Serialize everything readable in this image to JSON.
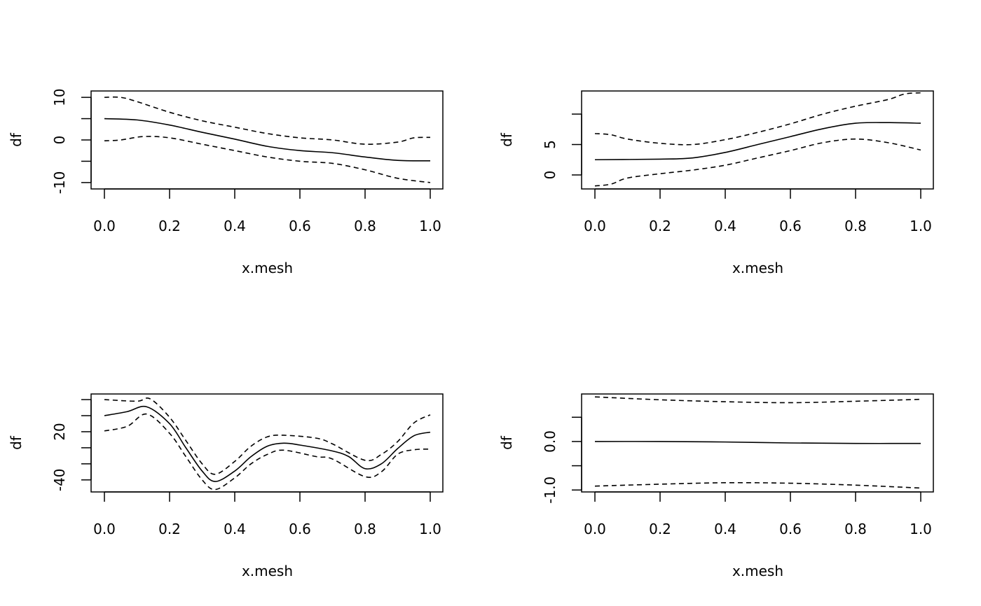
{
  "chart_data": [
    {
      "type": "line",
      "xlabel": "x.mesh",
      "ylabel": "df",
      "xlim": [
        0,
        1
      ],
      "ylim": [
        -11.5,
        11.5
      ],
      "xticks": [
        0,
        0.2,
        0.4,
        0.6,
        0.8,
        1.0
      ],
      "xtick_labels": [
        "0.0",
        "0.2",
        "0.4",
        "0.6",
        "0.8",
        "1.0"
      ],
      "yticks": [
        -10,
        -5,
        0,
        5,
        10
      ],
      "ytick_labels": [
        "-10",
        "",
        "0",
        "",
        "10"
      ],
      "series": [
        {
          "style": "solid",
          "x": [
            0,
            0.1,
            0.2,
            0.3,
            0.4,
            0.5,
            0.6,
            0.7,
            0.8,
            0.9,
            1.0
          ],
          "y": [
            5,
            4.7,
            3.5,
            1.8,
            0.2,
            -1.5,
            -2.5,
            -3,
            -4,
            -4.8,
            -4.9
          ]
        },
        {
          "style": "dashed",
          "x": [
            0,
            0.05,
            0.1,
            0.2,
            0.3,
            0.4,
            0.5,
            0.6,
            0.7,
            0.8,
            0.9,
            0.95,
            1.0
          ],
          "y": [
            10,
            10,
            9,
            6.5,
            4.5,
            3,
            1.5,
            0.5,
            0,
            -1,
            -0.5,
            0.5,
            0.6
          ]
        },
        {
          "style": "dashed",
          "x": [
            0,
            0.05,
            0.12,
            0.2,
            0.3,
            0.4,
            0.5,
            0.6,
            0.7,
            0.8,
            0.9,
            1.0
          ],
          "y": [
            -0.2,
            0,
            0.8,
            0.5,
            -1,
            -2.5,
            -4,
            -5,
            -5.5,
            -7,
            -9,
            -10
          ]
        }
      ]
    },
    {
      "type": "line",
      "xlabel": "x.mesh",
      "ylabel": "df",
      "xlim": [
        0,
        1
      ],
      "ylim": [
        -2.3,
        13.8
      ],
      "xticks": [
        0,
        0.2,
        0.4,
        0.6,
        0.8,
        1.0
      ],
      "xtick_labels": [
        "0.0",
        "0.2",
        "0.4",
        "0.6",
        "0.8",
        "1.0"
      ],
      "yticks": [
        0,
        5,
        10
      ],
      "ytick_labels": [
        "0",
        "5",
        ""
      ],
      "series": [
        {
          "style": "solid",
          "x": [
            0,
            0.2,
            0.3,
            0.4,
            0.5,
            0.6,
            0.7,
            0.8,
            0.9,
            1.0
          ],
          "y": [
            2.5,
            2.6,
            2.8,
            3.7,
            5,
            6.3,
            7.6,
            8.5,
            8.6,
            8.5
          ]
        },
        {
          "style": "dashed",
          "x": [
            0,
            0.05,
            0.1,
            0.2,
            0.3,
            0.4,
            0.5,
            0.6,
            0.7,
            0.8,
            0.9,
            0.95,
            1.0
          ],
          "y": [
            6.8,
            6.6,
            5.9,
            5.2,
            5,
            5.8,
            7,
            8.4,
            10,
            11.3,
            12.4,
            13.3,
            13.5
          ]
        },
        {
          "style": "dashed",
          "x": [
            0,
            0.05,
            0.1,
            0.2,
            0.3,
            0.4,
            0.5,
            0.6,
            0.7,
            0.8,
            0.9,
            1.0
          ],
          "y": [
            -1.8,
            -1.5,
            -0.5,
            0.2,
            0.8,
            1.6,
            2.8,
            4,
            5.3,
            5.9,
            5.3,
            4.1
          ]
        }
      ]
    },
    {
      "type": "line",
      "xlabel": "x.mesh",
      "ylabel": "df",
      "xlim": [
        0,
        1
      ],
      "ylim": [
        -55,
        67
      ],
      "xticks": [
        0,
        0.2,
        0.4,
        0.6,
        0.8,
        1.0
      ],
      "xtick_labels": [
        "0.0",
        "0.2",
        "0.4",
        "0.6",
        "0.8",
        "1.0"
      ],
      "yticks": [
        -40,
        -20,
        0,
        20,
        40,
        60
      ],
      "ytick_labels": [
        "-40",
        "",
        "",
        "20",
        "",
        ""
      ],
      "series": [
        {
          "style": "solid",
          "x": [
            0,
            0.07,
            0.13,
            0.2,
            0.25,
            0.3,
            0.34,
            0.4,
            0.45,
            0.5,
            0.55,
            0.6,
            0.7,
            0.75,
            0.8,
            0.85,
            0.9,
            0.95,
            1.0
          ],
          "y": [
            40,
            45,
            51,
            30,
            0,
            -29,
            -42,
            -29,
            -11,
            2,
            5.7,
            3.4,
            -4,
            -11,
            -26,
            -20,
            -1,
            15,
            19.4
          ]
        },
        {
          "style": "dashed",
          "x": [
            0,
            0.1,
            0.14,
            0.2,
            0.25,
            0.3,
            0.34,
            0.4,
            0.45,
            0.5,
            0.55,
            0.65,
            0.7,
            0.8,
            0.85,
            0.9,
            0.95,
            1.0
          ],
          "y": [
            60,
            58,
            61,
            38,
            9,
            -20,
            -33,
            -17,
            2,
            13.6,
            15.6,
            12,
            4.8,
            -15.6,
            -8.3,
            7.7,
            31,
            41
          ]
        },
        {
          "style": "dashed",
          "x": [
            0,
            0.07,
            0.13,
            0.2,
            0.25,
            0.3,
            0.34,
            0.4,
            0.45,
            0.5,
            0.55,
            0.65,
            0.7,
            0.8,
            0.85,
            0.9,
            0.95,
            1.0
          ],
          "y": [
            21,
            26.7,
            42,
            18,
            -11,
            -40,
            -52,
            -37.5,
            -20,
            -8.3,
            -3,
            -11,
            -14,
            -36,
            -30,
            -8,
            -2.5,
            -1.6
          ]
        }
      ]
    },
    {
      "type": "line",
      "xlabel": "x.mesh",
      "ylabel": "df",
      "xlim": [
        0,
        1
      ],
      "ylim": [
        -1.04,
        0.98
      ],
      "xticks": [
        0,
        0.2,
        0.4,
        0.6,
        0.8,
        1.0
      ],
      "xtick_labels": [
        "0.0",
        "0.2",
        "0.4",
        "0.6",
        "0.8",
        "1.0"
      ],
      "yticks": [
        -1.0,
        -0.5,
        0.0,
        0.5
      ],
      "ytick_labels": [
        "-1.0",
        "",
        "0.0",
        ""
      ],
      "series": [
        {
          "style": "solid",
          "x": [
            0,
            0.2,
            0.4,
            0.6,
            0.8,
            1.0
          ],
          "y": [
            0,
            0,
            -0.01,
            -0.03,
            -0.04,
            -0.04
          ]
        },
        {
          "style": "dashed",
          "x": [
            0,
            0.2,
            0.4,
            0.6,
            0.8,
            1.0
          ],
          "y": [
            0.92,
            0.86,
            0.82,
            0.8,
            0.83,
            0.87
          ]
        },
        {
          "style": "dashed",
          "x": [
            0,
            0.2,
            0.4,
            0.6,
            0.8,
            1.0
          ],
          "y": [
            -0.92,
            -0.88,
            -0.85,
            -0.86,
            -0.9,
            -0.96
          ]
        }
      ]
    }
  ]
}
